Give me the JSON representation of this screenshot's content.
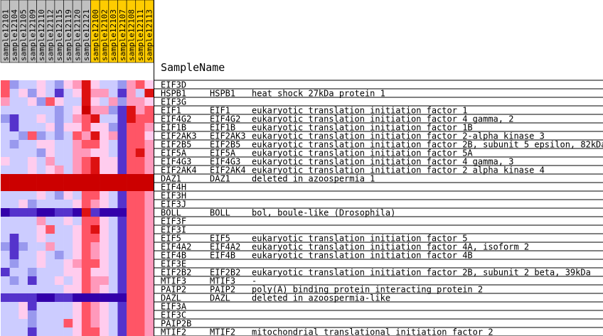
{
  "chart_data": {
    "type": "heatmap",
    "header_label": "SampleName",
    "samples": [
      {
        "name": "sample12101",
        "group": "gray"
      },
      {
        "name": "sample12104",
        "group": "gray"
      },
      {
        "name": "sample12105",
        "group": "gray"
      },
      {
        "name": "sample12109",
        "group": "gray"
      },
      {
        "name": "sample12110",
        "group": "gray"
      },
      {
        "name": "sample12112",
        "group": "gray"
      },
      {
        "name": "sample12115",
        "group": "gray"
      },
      {
        "name": "sample12119",
        "group": "gray"
      },
      {
        "name": "sample12120",
        "group": "gray"
      },
      {
        "name": "sample12121",
        "group": "gray"
      },
      {
        "name": "sample12100",
        "group": "gold"
      },
      {
        "name": "sample12102",
        "group": "gold"
      },
      {
        "name": "sample12103",
        "group": "gold"
      },
      {
        "name": "sample12107",
        "group": "gold"
      },
      {
        "name": "sample12108",
        "group": "gold"
      },
      {
        "name": "sample12111",
        "group": "gold"
      },
      {
        "name": "sample12113",
        "group": "gold"
      }
    ],
    "group_colors": {
      "gray": "#c0c0c0",
      "gold": "#ffcc00"
    },
    "color_scale": [
      "#3300aa",
      "#5533cc",
      "#9999ee",
      "#ccccff",
      "#ffccee",
      "#ff99bb",
      "#ff5566",
      "#dd1111",
      "#cc0000"
    ],
    "rows": [
      {
        "probe": "EIF3D",
        "symbol": "",
        "description": "",
        "values": [
          6,
          2,
          3,
          3,
          4,
          3,
          2,
          4,
          5,
          7,
          4,
          3,
          3,
          2,
          5,
          6,
          4
        ]
      },
      {
        "probe": "HSPB1",
        "symbol": "HSPB1",
        "description": "heat shock 27kDa protein 1",
        "values": [
          6,
          3,
          4,
          2,
          4,
          3,
          1,
          3,
          4,
          7,
          5,
          5,
          3,
          1,
          5,
          3,
          7
        ]
      },
      {
        "probe": "EIF3G",
        "symbol": "",
        "description": "",
        "values": [
          5,
          3,
          3,
          4,
          2,
          6,
          4,
          3,
          3,
          7,
          4,
          3,
          5,
          2,
          5,
          5,
          4
        ]
      },
      {
        "probe": "EIF1",
        "symbol": "EIF1",
        "description": "eukaryotic translation initiation factor 1",
        "values": [
          3,
          3,
          3,
          3,
          3,
          3,
          2,
          3,
          4,
          8,
          5,
          5,
          2,
          1,
          7,
          5,
          6
        ]
      },
      {
        "probe": "EIF4G2",
        "symbol": "EIF4G2",
        "description": "eukaryotic translation initiation factor 4 gamma, 2",
        "values": [
          2,
          1,
          3,
          3,
          4,
          3,
          2,
          3,
          5,
          6,
          7,
          3,
          3,
          1,
          7,
          6,
          6
        ]
      },
      {
        "probe": "EIF1B",
        "symbol": "EIF1B",
        "description": "eukaryotic translation initiation factor 1B",
        "values": [
          3,
          1,
          3,
          3,
          3,
          4,
          2,
          4,
          4,
          6,
          4,
          4,
          2,
          1,
          6,
          6,
          5
        ]
      },
      {
        "probe": "EIF2AK3",
        "symbol": "EIF2AK3",
        "description": "eukaryotic translation initiation factor 2-alpha kinase 3",
        "values": [
          3,
          3,
          2,
          6,
          2,
          3,
          2,
          3,
          6,
          5,
          7,
          4,
          5,
          1,
          6,
          6,
          4
        ]
      },
      {
        "probe": "EIF2B5",
        "symbol": "EIF2B5",
        "description": "eukaryotic translation initiation factor 2B, subunit 5 epsilon, 82kDa",
        "values": [
          3,
          2,
          3,
          3,
          4,
          4,
          3,
          3,
          5,
          6,
          6,
          4,
          3,
          1,
          6,
          6,
          5
        ]
      },
      {
        "probe": "EIF5A",
        "symbol": "EIF5A",
        "description": "eukaryotic translation initiation factor 5A",
        "values": [
          3,
          3,
          3,
          3,
          2,
          4,
          3,
          3,
          5,
          5,
          4,
          4,
          3,
          1,
          6,
          7,
          5
        ]
      },
      {
        "probe": "EIF4G3",
        "symbol": "EIF4G3",
        "description": "eukaryotic translation initiation factor 4 gamma, 3",
        "values": [
          4,
          3,
          3,
          4,
          3,
          5,
          3,
          3,
          5,
          6,
          7,
          4,
          4,
          1,
          6,
          6,
          5
        ]
      },
      {
        "probe": "EIF2AK4",
        "symbol": "EIF2AK4",
        "description": "eukaryotic translation initiation factor 2 alpha kinase 4",
        "values": [
          3,
          3,
          3,
          4,
          3,
          4,
          5,
          3,
          5,
          6,
          7,
          4,
          4,
          1,
          6,
          6,
          5
        ]
      },
      {
        "probe": "DAZ1",
        "symbol": "DAZ1",
        "description": "deleted in azoospermia 1",
        "values": [
          8,
          8,
          8,
          8,
          8,
          8,
          8,
          8,
          8,
          8,
          8,
          8,
          8,
          8,
          8,
          8,
          8
        ]
      },
      {
        "probe": "EIF4H",
        "symbol": "",
        "description": "",
        "values": [
          8,
          8,
          8,
          8,
          8,
          8,
          8,
          8,
          8,
          8,
          8,
          8,
          8,
          8,
          8,
          8,
          8
        ]
      },
      {
        "probe": "EIF3H",
        "symbol": "",
        "description": "",
        "values": [
          3,
          3,
          3,
          3,
          4,
          3,
          2,
          4,
          3,
          6,
          6,
          4,
          3,
          1,
          6,
          6,
          5
        ]
      },
      {
        "probe": "EIF3J",
        "symbol": "",
        "description": "",
        "values": [
          3,
          3,
          4,
          2,
          3,
          3,
          3,
          3,
          4,
          6,
          5,
          4,
          3,
          1,
          6,
          6,
          5
        ]
      },
      {
        "probe": "BOLL",
        "symbol": "BOLL",
        "description": "bol, boule-like (Drosophila)",
        "values": [
          0,
          1,
          1,
          1,
          0,
          0,
          1,
          1,
          0,
          7,
          1,
          0,
          0,
          0,
          6,
          6,
          5
        ]
      },
      {
        "probe": "EIF3F",
        "symbol": "",
        "description": "",
        "values": [
          3,
          3,
          3,
          3,
          5,
          3,
          3,
          4,
          3,
          6,
          6,
          4,
          3,
          1,
          6,
          6,
          5
        ]
      },
      {
        "probe": "EIF3I",
        "symbol": "",
        "description": "",
        "values": [
          3,
          3,
          3,
          3,
          4,
          6,
          3,
          3,
          4,
          6,
          7,
          4,
          3,
          1,
          6,
          6,
          5
        ]
      },
      {
        "probe": "EIF5",
        "symbol": "EIF5",
        "description": "eukaryotic translation initiation factor 5",
        "values": [
          3,
          1,
          3,
          3,
          4,
          3,
          3,
          3,
          4,
          6,
          6,
          4,
          3,
          1,
          6,
          6,
          5
        ]
      },
      {
        "probe": "EIF4A2",
        "symbol": "EIF4A2",
        "description": "eukaryotic translation initiation factor 4A, isoform 2",
        "values": [
          2,
          1,
          2,
          3,
          3,
          5,
          3,
          3,
          4,
          6,
          5,
          4,
          3,
          1,
          6,
          6,
          5
        ]
      },
      {
        "probe": "EIF4B",
        "symbol": "EIF4B",
        "description": "eukaryotic translation initiation factor 4B",
        "values": [
          3,
          1,
          3,
          3,
          4,
          3,
          2,
          3,
          4,
          6,
          5,
          4,
          3,
          1,
          6,
          6,
          5
        ]
      },
      {
        "probe": "EIF3E",
        "symbol": "",
        "description": "",
        "values": [
          3,
          2,
          3,
          3,
          4,
          3,
          3,
          4,
          5,
          6,
          6,
          4,
          3,
          1,
          6,
          6,
          5
        ]
      },
      {
        "probe": "EIF2B2",
        "symbol": "EIF2B2",
        "description": "eukaryotic translation initiation factor 2B, subunit 2 beta, 39kDa",
        "values": [
          1,
          3,
          3,
          2,
          3,
          3,
          3,
          4,
          4,
          6,
          4,
          4,
          3,
          1,
          6,
          6,
          5
        ]
      },
      {
        "probe": "MTIF3",
        "symbol": "MTIF3",
        "description": "-",
        "values": [
          3,
          2,
          3,
          1,
          3,
          3,
          4,
          3,
          4,
          6,
          5,
          5,
          3,
          1,
          6,
          6,
          5
        ]
      },
      {
        "probe": "PAIP2",
        "symbol": "PAIP2",
        "description": "poly(A) binding protein interacting protein 2",
        "values": [
          3,
          3,
          3,
          3,
          3,
          3,
          3,
          4,
          4,
          6,
          5,
          4,
          3,
          1,
          6,
          6,
          5
        ]
      },
      {
        "probe": "DAZL",
        "symbol": "DAZL",
        "description": "deleted in azoospermia-like",
        "values": [
          1,
          1,
          1,
          1,
          0,
          0,
          1,
          1,
          0,
          0,
          0,
          0,
          0,
          0,
          6,
          6,
          5
        ]
      },
      {
        "probe": "EIF3A",
        "symbol": "",
        "description": "",
        "values": [
          3,
          3,
          4,
          1,
          3,
          3,
          3,
          3,
          4,
          6,
          5,
          4,
          3,
          1,
          6,
          6,
          5
        ]
      },
      {
        "probe": "EIF3C",
        "symbol": "",
        "description": "",
        "values": [
          3,
          3,
          4,
          2,
          3,
          3,
          3,
          3,
          4,
          6,
          5,
          4,
          3,
          1,
          6,
          6,
          5
        ]
      },
      {
        "probe": "PAIP2B",
        "symbol": "",
        "description": "",
        "values": [
          3,
          3,
          3,
          2,
          3,
          3,
          3,
          6,
          4,
          6,
          5,
          4,
          3,
          1,
          6,
          6,
          5
        ]
      },
      {
        "probe": "MTIF2",
        "symbol": "MTIF2",
        "description": "mitochondrial translational initiation factor 2",
        "values": [
          3,
          3,
          3,
          1,
          3,
          3,
          3,
          3,
          4,
          6,
          6,
          4,
          3,
          1,
          6,
          6,
          5
        ]
      }
    ]
  }
}
